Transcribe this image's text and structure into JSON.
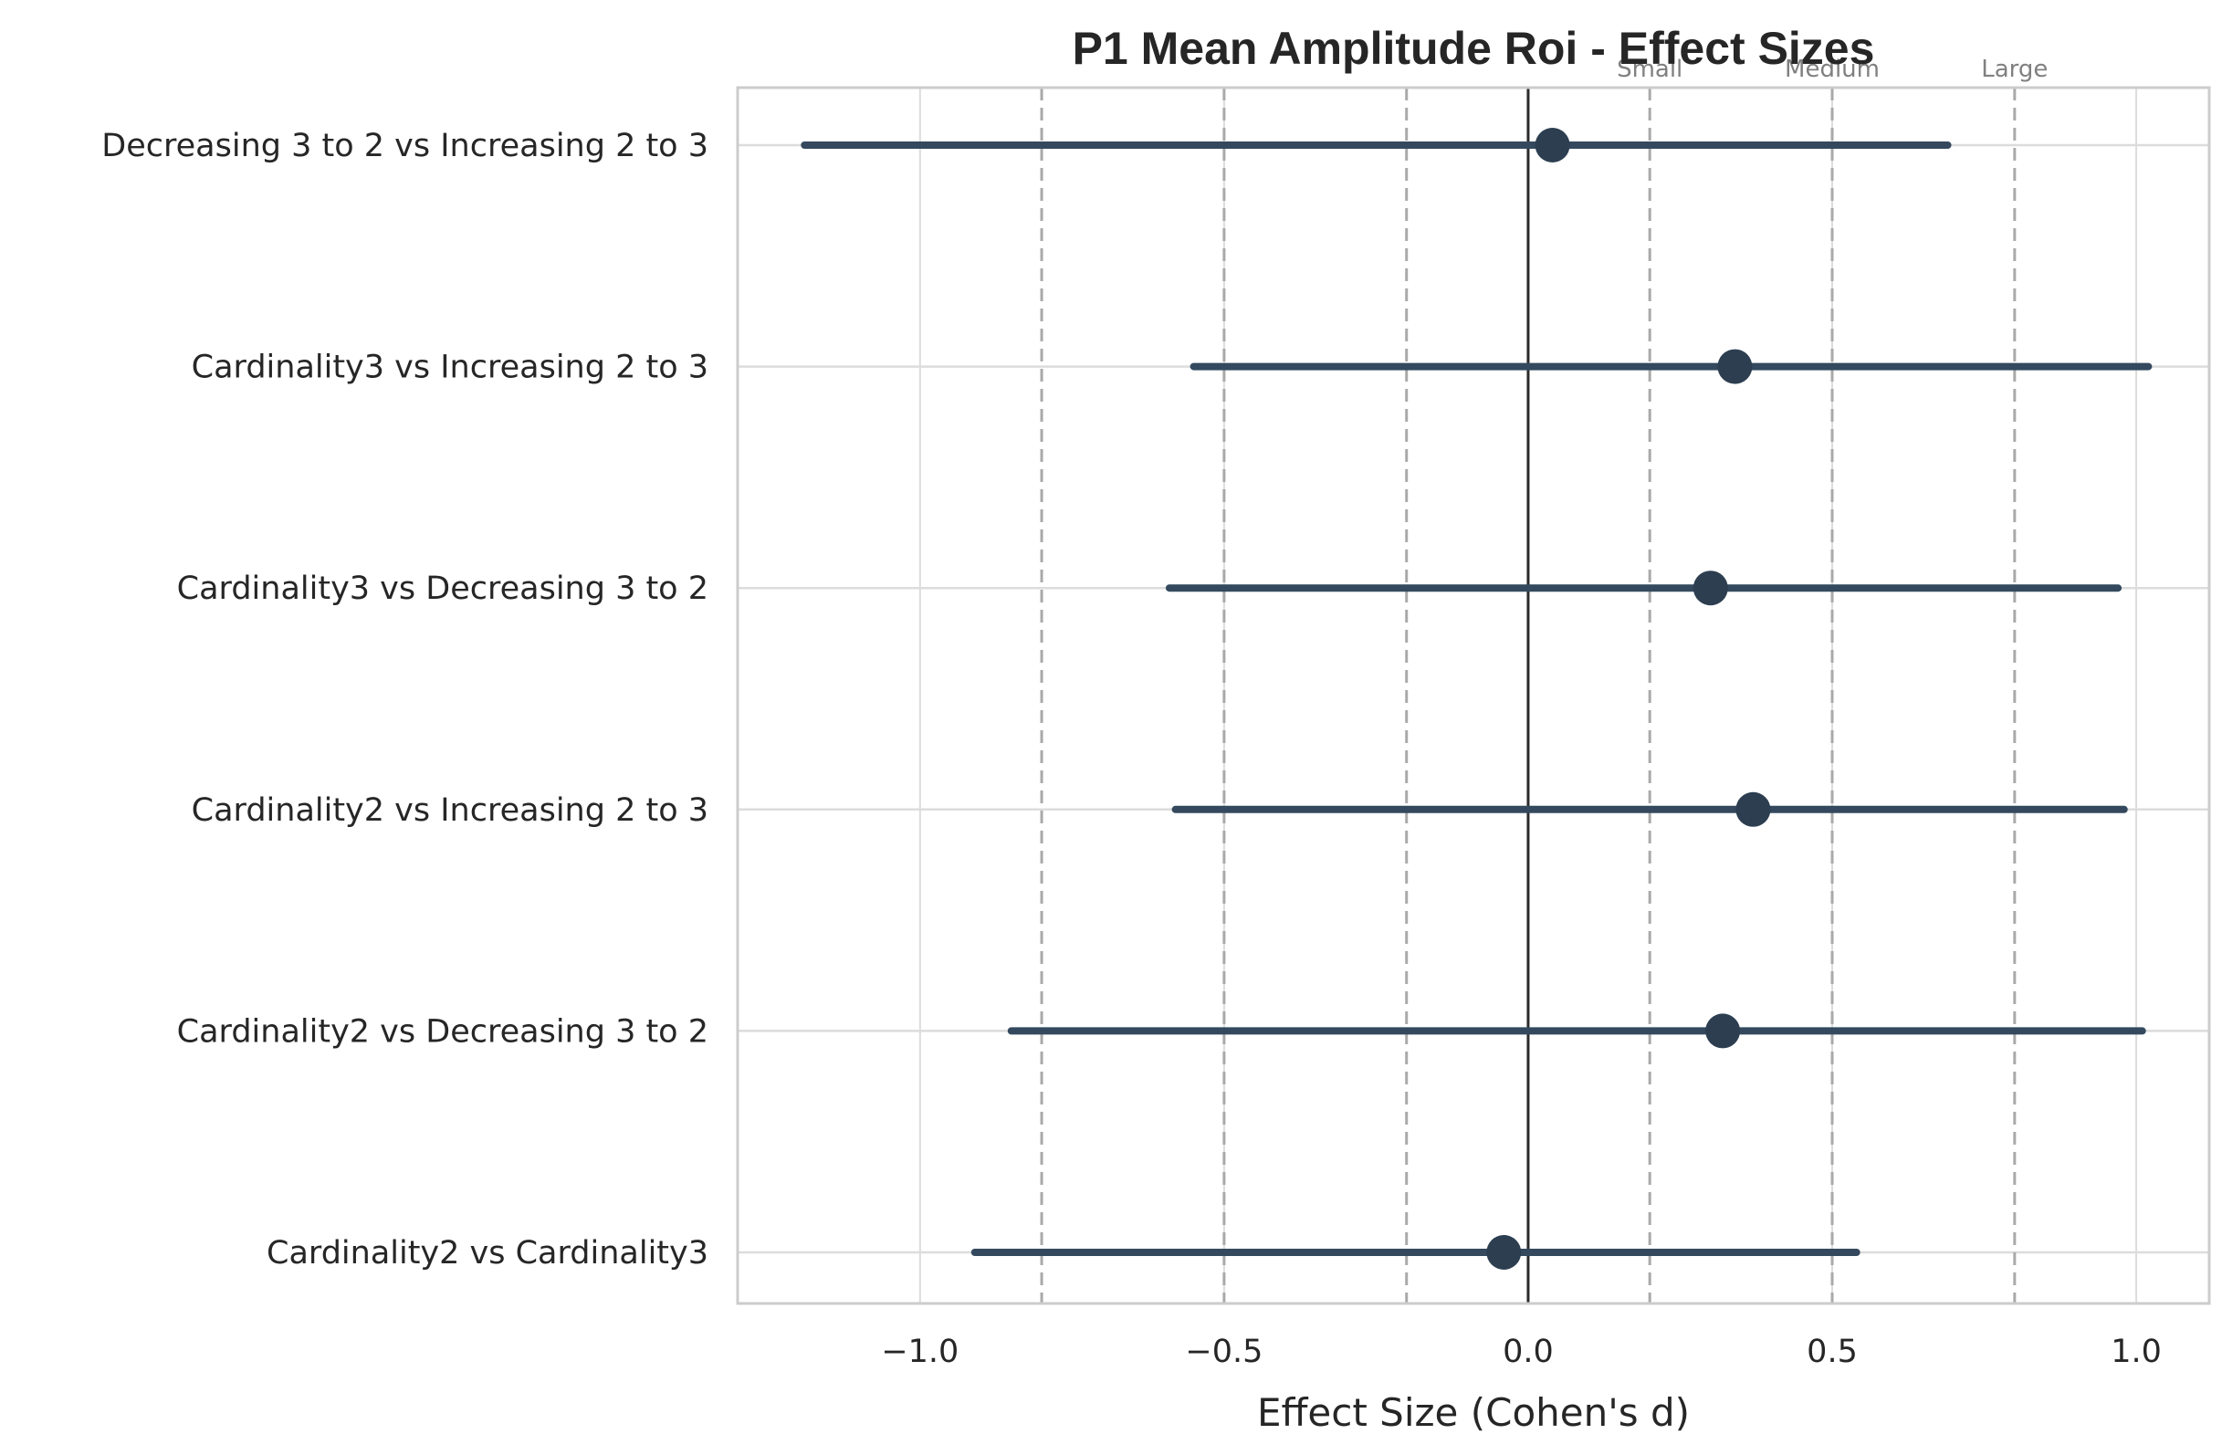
{
  "chart_data": {
    "type": "forest",
    "title": "P1 Mean Amplitude Roi - Effect Sizes",
    "xlabel": "Effect Size (Cohen's d)",
    "ylabel": "",
    "xlim": [
      -1.3,
      1.12
    ],
    "xticks": [
      -1.0,
      -0.5,
      0.0,
      0.5,
      1.0
    ],
    "xtick_labels": [
      "−1.0",
      "−0.5",
      "0.0",
      "0.5",
      "1.0"
    ],
    "grid": true,
    "zero_line": 0,
    "thresholds": [
      -0.8,
      -0.5,
      -0.2,
      0.2,
      0.5,
      0.8
    ],
    "threshold_labels": [
      {
        "x": 0.2,
        "text": "Small"
      },
      {
        "x": 0.5,
        "text": "Medium"
      },
      {
        "x": 0.8,
        "text": "Large"
      }
    ],
    "comparisons": [
      {
        "label": "Decreasing 3 to 2 vs Increasing 2 to 3",
        "d": 0.04,
        "ci_low": -1.19,
        "ci_high": 0.69
      },
      {
        "label": "Cardinality3 vs Increasing 2 to 3",
        "d": 0.34,
        "ci_low": -0.55,
        "ci_high": 1.02
      },
      {
        "label": "Cardinality3 vs Decreasing 3 to 2",
        "d": 0.3,
        "ci_low": -0.59,
        "ci_high": 0.97
      },
      {
        "label": "Cardinality2 vs Increasing 2 to 3",
        "d": 0.37,
        "ci_low": -0.58,
        "ci_high": 0.98
      },
      {
        "label": "Cardinality2 vs Decreasing 3 to 2",
        "d": 0.32,
        "ci_low": -0.85,
        "ci_high": 1.01
      },
      {
        "label": "Cardinality2 vs Cardinality3",
        "d": -0.04,
        "ci_low": -0.91,
        "ci_high": 0.54
      }
    ],
    "colors": {
      "marker": "#2c3e50",
      "errorbar": "#34495e",
      "grid": "#dcdcdc",
      "threshold": "#a9a9a9",
      "zero_line": "#2b2b2b",
      "spine": "#cccccc"
    }
  }
}
